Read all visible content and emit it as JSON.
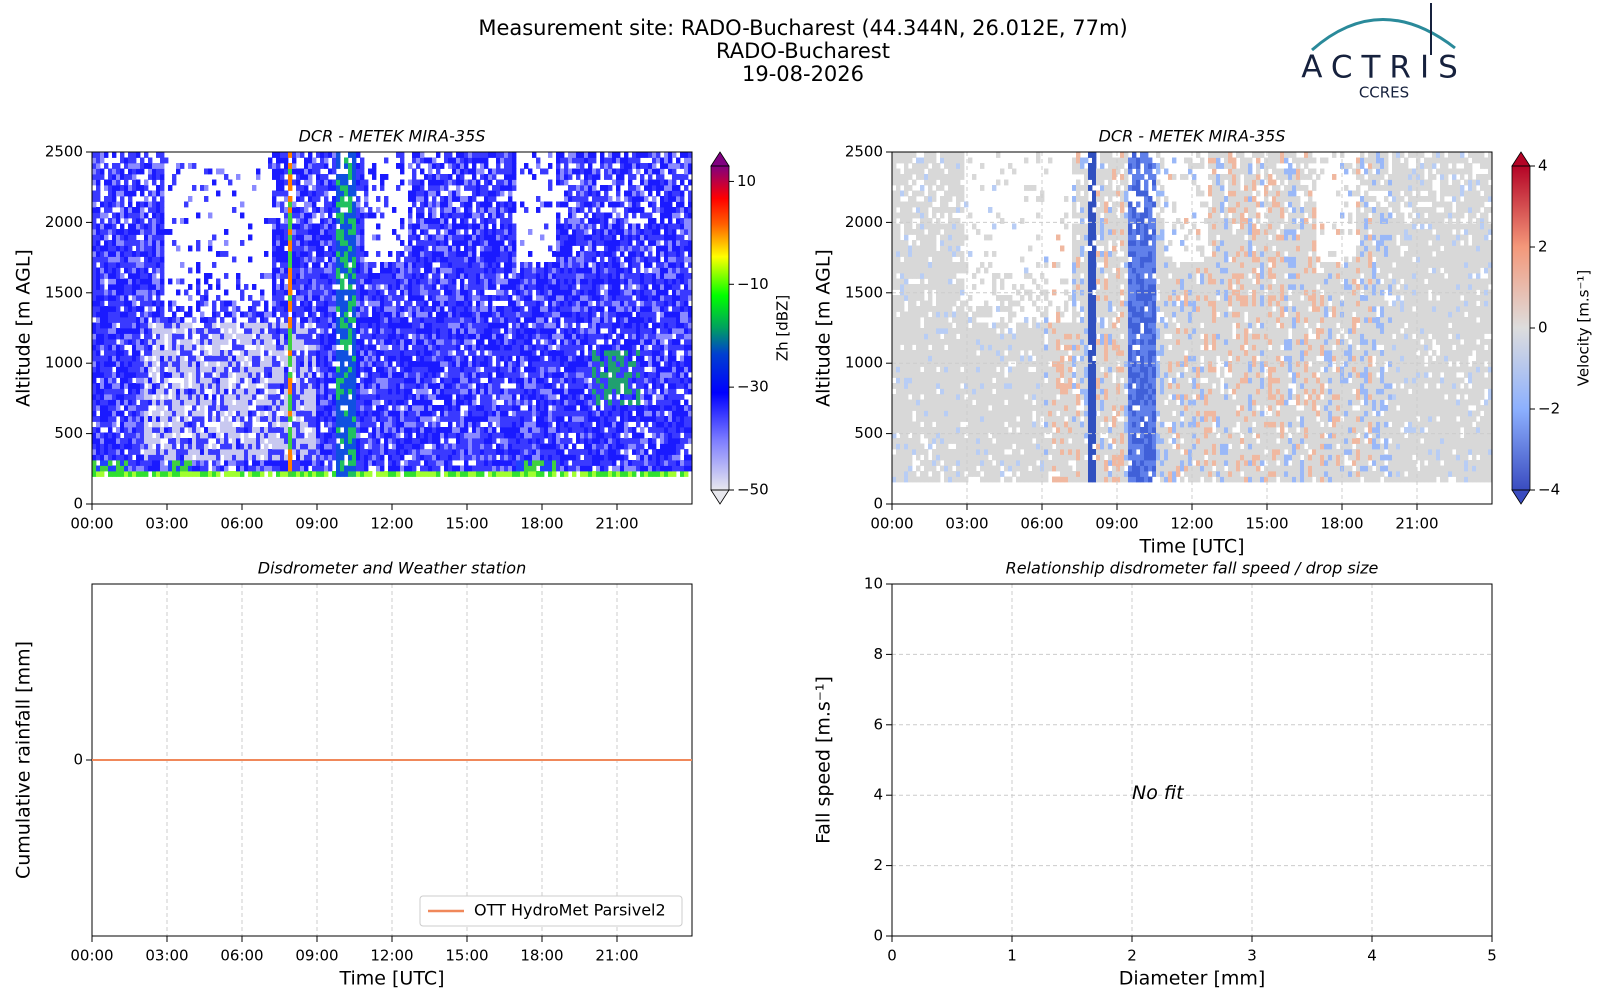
{
  "header": {
    "title": "Measurement site: RADO-Bucharest (44.344N, 26.012E, 77m)",
    "subtitle": "RADO-Bucharest",
    "date": "19-08-2026",
    "logo": "ACTRIS",
    "logo_sub": "CCRES"
  },
  "chart_data": [
    {
      "type": "heatmap",
      "title": "DCR - METEK MIRA-35S",
      "y_label": "Altitude [m AGL]",
      "xlim": [
        0,
        24
      ],
      "xticks": [
        {
          "value": 0,
          "label": "00:00"
        },
        {
          "value": 3,
          "label": "03:00"
        },
        {
          "value": 6,
          "label": "06:00"
        },
        {
          "value": 9,
          "label": "09:00"
        },
        {
          "value": 12,
          "label": "12:00"
        },
        {
          "value": 15,
          "label": "15:00"
        },
        {
          "value": 18,
          "label": "18:00"
        },
        {
          "value": 21,
          "label": "21:00"
        }
      ],
      "ylim": [
        0,
        2500
      ],
      "yticks": [
        0,
        500,
        1000,
        1500,
        2000,
        2500
      ],
      "grid": false,
      "colorbar": {
        "label": "Zh [dBZ]",
        "lim": [
          -50,
          13
        ],
        "ticks": [
          {
            "value": -50,
            "label": "−50"
          },
          {
            "value": -30,
            "label": "−30"
          },
          {
            "value": -10,
            "label": "−10"
          },
          10
        ]
      }
    },
    {
      "type": "heatmap",
      "title": "DCR - METEK MIRA-35S",
      "y_label": "Altitude [m AGL]",
      "x_label": "Time [UTC]",
      "xlim": [
        0,
        24
      ],
      "xticks": [
        {
          "value": 0,
          "label": "00:00"
        },
        {
          "value": 3,
          "label": "03:00"
        },
        {
          "value": 6,
          "label": "06:00"
        },
        {
          "value": 9,
          "label": "09:00"
        },
        {
          "value": 12,
          "label": "12:00"
        },
        {
          "value": 15,
          "label": "15:00"
        },
        {
          "value": 18,
          "label": "18:00"
        },
        {
          "value": 21,
          "label": "21:00"
        }
      ],
      "ylim": [
        0,
        2500
      ],
      "yticks": [
        0,
        500,
        1000,
        1500,
        2000,
        2500
      ],
      "grid": true,
      "colorbar": {
        "label": "Velocity [m.s⁻¹]",
        "lim": [
          -4,
          4
        ],
        "ticks": [
          {
            "value": -4,
            "label": "−4"
          },
          {
            "value": -2,
            "label": "−2"
          },
          0,
          2,
          4
        ]
      }
    },
    {
      "type": "line",
      "title": "Disdrometer and Weather station",
      "y_label": "Cumulative rainfall [mm]",
      "x_label": "Time [UTC]",
      "xlim": [
        0,
        24
      ],
      "xticks": [
        {
          "value": 0,
          "label": "00:00"
        },
        {
          "value": 3,
          "label": "03:00"
        },
        {
          "value": 6,
          "label": "06:00"
        },
        {
          "value": 9,
          "label": "09:00"
        },
        {
          "value": 12,
          "label": "12:00"
        },
        {
          "value": 15,
          "label": "15:00"
        },
        {
          "value": 18,
          "label": "18:00"
        },
        {
          "value": 21,
          "label": "21:00"
        }
      ],
      "ylim": [
        -1,
        1
      ],
      "yticks": [
        0
      ],
      "grid": true,
      "legend": "lower right",
      "x": [
        0,
        24
      ],
      "series": [
        {
          "name": "OTT HydroMet Parsivel2",
          "color": "#f0885a",
          "values": [
            0,
            0
          ]
        }
      ]
    },
    {
      "type": "scatter",
      "title": "Relationship disdrometer fall speed / drop size",
      "y_label": "Fall speed [m.s⁻¹]",
      "x_label": "Diameter [mm]",
      "xlim": [
        0,
        5
      ],
      "xticks": [
        0,
        1,
        2,
        3,
        4,
        5
      ],
      "ylim": [
        0,
        10
      ],
      "yticks": [
        0,
        2,
        4,
        6,
        8,
        10
      ],
      "grid": true,
      "annotation": "No fit"
    }
  ]
}
